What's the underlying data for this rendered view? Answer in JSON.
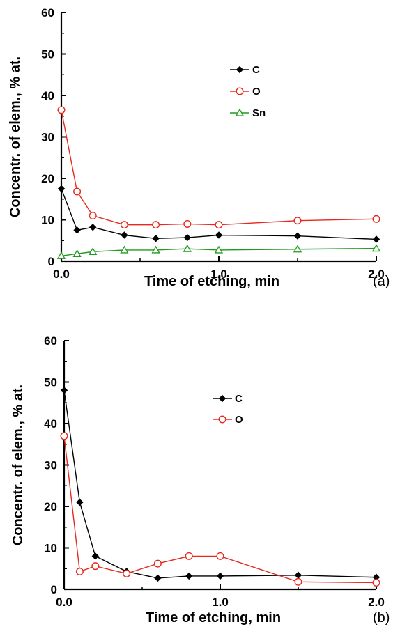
{
  "chart_data": [
    {
      "type": "line",
      "panel_label": "(a)",
      "xlabel": "Time of etching, min",
      "ylabel": "Concentr. of elem., % at.",
      "xlim": [
        0,
        2
      ],
      "ylim": [
        0,
        60
      ],
      "xticks": [
        0,
        1,
        2
      ],
      "xtick_labels": [
        "0.0",
        "1.0",
        "2.0"
      ],
      "yticks": [
        0,
        10,
        20,
        30,
        40,
        50,
        60
      ],
      "ytick_labels": [
        "0",
        "10",
        "20",
        "30",
        "40",
        "50",
        "60"
      ],
      "grid": false,
      "legend": "upper-right",
      "series": [
        {
          "name": "C",
          "color": "#000000",
          "marker": "diamond",
          "x": [
            0,
            0.1,
            0.2,
            0.4,
            0.6,
            0.8,
            1.0,
            1.5,
            2.0
          ],
          "y": [
            17.5,
            7.5,
            8.2,
            6.3,
            5.5,
            5.7,
            6.3,
            6.1,
            5.3
          ]
        },
        {
          "name": "O",
          "color": "#e8281e",
          "marker": "circle",
          "x": [
            0,
            0.1,
            0.2,
            0.4,
            0.6,
            0.8,
            1.0,
            1.5,
            2.0
          ],
          "y": [
            36.5,
            16.8,
            11.0,
            8.8,
            8.8,
            9.0,
            8.8,
            9.8,
            10.2
          ]
        },
        {
          "name": "Sn",
          "color": "#1e9a1e",
          "marker": "triangle",
          "x": [
            0,
            0.1,
            0.2,
            0.4,
            0.6,
            0.8,
            1.0,
            1.5,
            2.0
          ],
          "y": [
            1.3,
            1.8,
            2.3,
            2.7,
            2.7,
            3.0,
            2.7,
            2.9,
            3.1
          ]
        }
      ]
    },
    {
      "type": "line",
      "panel_label": "(b)",
      "xlabel": "Time of etching, min",
      "ylabel": "Concentr. of elem., % at.",
      "xlim": [
        0,
        2
      ],
      "ylim": [
        0,
        60
      ],
      "xticks": [
        0,
        1,
        2
      ],
      "xtick_labels": [
        "0.0",
        "1.0",
        "2.0"
      ],
      "yticks": [
        0,
        10,
        20,
        30,
        40,
        50,
        60
      ],
      "ytick_labels": [
        "0",
        "10",
        "20",
        "30",
        "40",
        "50",
        "60"
      ],
      "grid": false,
      "legend": "upper-right",
      "series": [
        {
          "name": "C",
          "color": "#000000",
          "marker": "diamond",
          "x": [
            0,
            0.1,
            0.2,
            0.4,
            0.6,
            0.8,
            1.0,
            1.5,
            2.0
          ],
          "y": [
            48.0,
            21.0,
            8.0,
            4.3,
            2.7,
            3.2,
            3.2,
            3.4,
            2.9
          ]
        },
        {
          "name": "O",
          "color": "#e8281e",
          "marker": "circle",
          "x": [
            0,
            0.1,
            0.2,
            0.4,
            0.6,
            0.8,
            1.0,
            1.5,
            2.0
          ],
          "y": [
            37.0,
            4.3,
            5.6,
            3.8,
            6.2,
            8.0,
            8.0,
            1.8,
            1.6
          ]
        }
      ]
    }
  ]
}
